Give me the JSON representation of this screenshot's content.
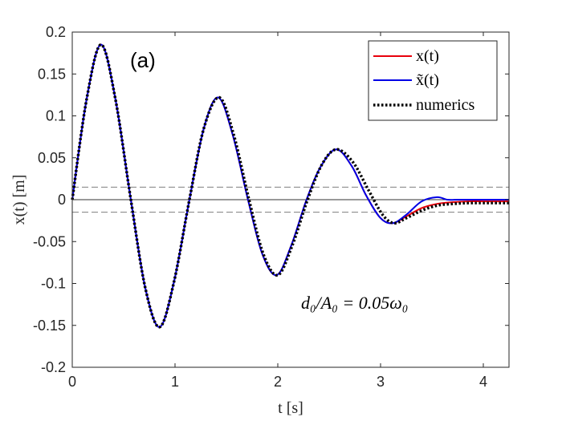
{
  "chart_data": {
    "type": "line",
    "panel_label": "(a)",
    "xlabel": "t [s]",
    "ylabel": "x(t) [m]",
    "xlim": [
      0,
      4.25
    ],
    "ylim": [
      -0.2,
      0.2
    ],
    "xticks": [
      0,
      1,
      2,
      3,
      4
    ],
    "xtick_labels": [
      "0",
      "1",
      "2",
      "3",
      "4"
    ],
    "yticks": [
      -0.2,
      -0.15,
      -0.1,
      -0.05,
      0,
      0.05,
      0.1,
      0.15,
      0.2
    ],
    "ytick_labels": [
      "-0.2",
      "-0.15",
      "-0.1",
      "-0.05",
      "0",
      "0.05",
      "0.1",
      "0.15",
      "0.2"
    ],
    "grid": false,
    "legend_position": "top-right",
    "annotation": "d₀/A₀ = 0.05ω₀",
    "reference_lines": [
      {
        "y": 0,
        "style": "solid"
      },
      {
        "y": 0.015,
        "style": "dashed"
      },
      {
        "y": -0.015,
        "style": "dashed"
      }
    ],
    "colors": {
      "x": "#e8000b",
      "x_tilde": "#0000e6",
      "numerics": "#000000",
      "axes": "#262626",
      "reference": "#7f7f7f"
    },
    "series": [
      {
        "name": "x(t)",
        "style": "solid",
        "x": [
          0,
          0.14,
          0.28,
          0.42,
          0.57,
          0.71,
          0.85,
          0.99,
          1.14,
          1.28,
          1.42,
          1.56,
          1.71,
          1.85,
          1.99,
          2.13,
          2.28,
          2.42,
          2.57,
          2.72,
          2.86,
          3.0,
          3.12,
          3.25,
          3.4,
          3.55,
          3.7,
          3.85,
          4.0,
          4.25
        ],
        "y": [
          0,
          0.12,
          0.185,
          0.12,
          0.0,
          -0.105,
          -0.152,
          -0.098,
          0.0,
          0.085,
          0.122,
          0.078,
          0.0,
          -0.065,
          -0.09,
          -0.055,
          0.0,
          0.04,
          0.06,
          0.04,
          0.005,
          -0.022,
          -0.028,
          -0.02,
          -0.01,
          -0.005,
          -0.003,
          -0.002,
          -0.002,
          -0.002
        ]
      },
      {
        "name": "x̃(t)",
        "style": "solid",
        "x": [
          0,
          0.14,
          0.28,
          0.42,
          0.57,
          0.71,
          0.85,
          0.99,
          1.14,
          1.28,
          1.42,
          1.56,
          1.71,
          1.85,
          1.99,
          2.13,
          2.28,
          2.42,
          2.57,
          2.72,
          2.86,
          3.0,
          3.12,
          3.25,
          3.4,
          3.55,
          3.65,
          3.75,
          3.85,
          4.0,
          4.25
        ],
        "y": [
          0,
          0.12,
          0.185,
          0.12,
          0.0,
          -0.105,
          -0.152,
          -0.098,
          0.0,
          0.085,
          0.122,
          0.078,
          0.0,
          -0.065,
          -0.09,
          -0.055,
          0.0,
          0.04,
          0.06,
          0.04,
          0.005,
          -0.022,
          -0.028,
          -0.018,
          -0.002,
          0.003,
          0.0,
          0.0,
          0.0,
          0.0,
          0.0
        ]
      },
      {
        "name": "numerics",
        "style": "dotted",
        "x": [
          0,
          0.14,
          0.28,
          0.42,
          0.57,
          0.71,
          0.85,
          0.99,
          1.14,
          1.28,
          1.43,
          1.57,
          1.72,
          1.86,
          2.0,
          2.14,
          2.29,
          2.43,
          2.57,
          2.73,
          2.88,
          3.02,
          3.13,
          3.25,
          3.4,
          3.55,
          3.7,
          3.85,
          4.0,
          4.25
        ],
        "y": [
          0,
          0.12,
          0.185,
          0.12,
          0.0,
          -0.105,
          -0.152,
          -0.098,
          0.0,
          0.085,
          0.122,
          0.078,
          0.0,
          -0.065,
          -0.09,
          -0.055,
          0.0,
          0.042,
          0.06,
          0.045,
          0.012,
          -0.018,
          -0.028,
          -0.022,
          -0.013,
          -0.007,
          -0.005,
          -0.004,
          -0.004,
          -0.004
        ]
      }
    ]
  }
}
